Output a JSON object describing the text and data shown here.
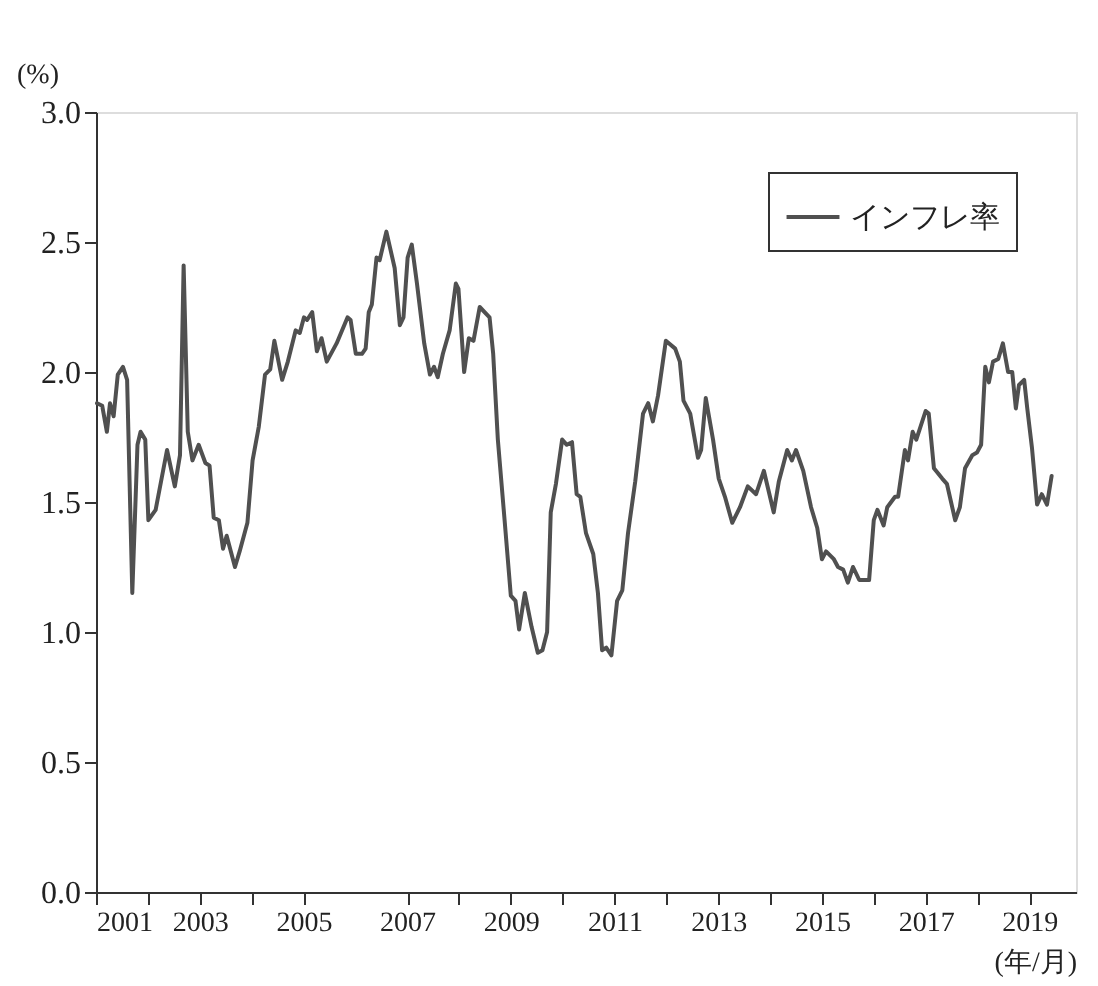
{
  "chart_data": {
    "type": "line",
    "xlabel": "(年/月)",
    "ylabel": "(%)",
    "xlim": [
      2001,
      2019.9
    ],
    "xticks": [
      {
        "value": 2001,
        "label": "2001"
      },
      {
        "value": 2002,
        "label": null
      },
      {
        "value": 2003,
        "label": "2003"
      },
      {
        "value": 2004,
        "label": null
      },
      {
        "value": 2005,
        "label": "2005"
      },
      {
        "value": 2007,
        "label": "2007"
      },
      {
        "value": 2008,
        "label": null
      },
      {
        "value": 2009,
        "label": "2009"
      },
      {
        "value": 2010,
        "label": null
      },
      {
        "value": 2011,
        "label": "2011"
      },
      {
        "value": 2012,
        "label": null
      },
      {
        "value": 2013,
        "label": "2013"
      },
      {
        "value": 2014,
        "label": null
      },
      {
        "value": 2015,
        "label": "2015"
      },
      {
        "value": 2016,
        "label": null
      },
      {
        "value": 2017,
        "label": "2017"
      },
      {
        "value": 2018,
        "label": null
      },
      {
        "value": 2019,
        "label": "2019"
      }
    ],
    "ylim": [
      0,
      3
    ],
    "yticks": [
      {
        "value": 0,
        "label": "0.0"
      },
      {
        "value": 0.5,
        "label": "0.5"
      },
      {
        "value": 1,
        "label": "1.0"
      },
      {
        "value": 1.5,
        "label": "1.5"
      },
      {
        "value": 2,
        "label": "2.0"
      },
      {
        "value": 2.5,
        "label": "2.5"
      },
      {
        "value": 3,
        "label": "3.0"
      }
    ],
    "grid": false,
    "legend": "top right",
    "marker": "none",
    "line_style": "solid",
    "series": [
      {
        "name": "インフレ率",
        "color": "#505050",
        "x": [
          2001.02,
          2001.12,
          2001.21,
          2001.27,
          2001.34,
          2001.42,
          2001.52,
          2001.6,
          2001.7,
          2001.8,
          2001.86,
          2001.95,
          2002.01,
          2002.15,
          2002.37,
          2002.52,
          2002.62,
          2002.69,
          2002.77,
          2002.86,
          2002.98,
          2003.11,
          2003.19,
          2003.27,
          2003.37,
          2003.45,
          2003.52,
          2003.68,
          2003.77,
          2003.92,
          2004.02,
          2004.14,
          2004.26,
          2004.36,
          2004.44,
          2004.59,
          2004.7,
          2004.85,
          2004.93,
          2005.01,
          2005.07,
          2005.17,
          2005.26,
          2005.35,
          2005.45,
          2005.64,
          2005.85,
          2005.91,
          2006.01,
          2006.13,
          2006.2,
          2006.26,
          2006.32,
          2006.41,
          2006.47,
          2006.6,
          2006.76,
          2006.86,
          2006.93,
          2007.01,
          2007.09,
          2007.19,
          2007.33,
          2007.44,
          2007.52,
          2007.59,
          2007.69,
          2007.82,
          2007.94,
          2007.99,
          2008.1,
          2008.19,
          2008.28,
          2008.4,
          2008.59,
          2008.66,
          2008.75,
          2008.88,
          2009.0,
          2009.09,
          2009.16,
          2009.27,
          2009.4,
          2009.52,
          2009.61,
          2009.7,
          2009.77,
          2009.87,
          2009.99,
          2010.08,
          2010.18,
          2010.27,
          2010.34,
          2010.45,
          2010.59,
          2010.68,
          2010.76,
          2010.84,
          2010.94,
          2011.05,
          2011.15,
          2011.26,
          2011.4,
          2011.55,
          2011.65,
          2011.74,
          2011.84,
          2011.99,
          2012.17,
          2012.26,
          2012.33,
          2012.46,
          2012.61,
          2012.67,
          2012.76,
          2012.9,
          2013.01,
          2013.13,
          2013.27,
          2013.42,
          2013.57,
          2013.73,
          2013.88,
          2014.07,
          2014.17,
          2014.33,
          2014.42,
          2014.5,
          2014.64,
          2014.79,
          2014.91,
          2015.0,
          2015.08,
          2015.23,
          2015.31,
          2015.41,
          2015.5,
          2015.6,
          2015.72,
          2015.91,
          2016.0,
          2016.07,
          2016.19,
          2016.26,
          2016.41,
          2016.47,
          2016.6,
          2016.66,
          2016.75,
          2016.82,
          2017.0,
          2017.06,
          2017.16,
          2017.32,
          2017.41,
          2017.57,
          2017.66,
          2017.76,
          2017.9,
          2017.99,
          2018.07,
          2018.15,
          2018.22,
          2018.3,
          2018.4,
          2018.49,
          2018.59,
          2018.67,
          2018.74,
          2018.8,
          2018.9,
          2018.96,
          2019.05,
          2019.15,
          2019.24,
          2019.34,
          2019.43
        ],
        "values": [
          1.88,
          1.87,
          1.77,
          1.88,
          1.83,
          1.99,
          2.02,
          1.97,
          1.15,
          1.72,
          1.77,
          1.74,
          1.43,
          1.47,
          1.7,
          1.56,
          1.68,
          2.41,
          1.77,
          1.66,
          1.72,
          1.65,
          1.64,
          1.44,
          1.43,
          1.32,
          1.37,
          1.25,
          1.31,
          1.42,
          1.66,
          1.79,
          1.99,
          2.01,
          2.12,
          1.97,
          2.04,
          2.16,
          2.15,
          2.21,
          2.2,
          2.23,
          2.08,
          2.13,
          2.04,
          2.11,
          2.21,
          2.2,
          2.07,
          2.07,
          2.09,
          2.23,
          2.26,
          2.44,
          2.43,
          2.54,
          2.4,
          2.18,
          2.21,
          2.44,
          2.49,
          2.34,
          2.11,
          1.99,
          2.02,
          1.98,
          2.07,
          2.16,
          2.34,
          2.32,
          2.0,
          2.13,
          2.12,
          2.25,
          2.21,
          2.07,
          1.74,
          1.43,
          1.14,
          1.12,
          1.01,
          1.15,
          1.02,
          0.92,
          0.93,
          1.0,
          1.46,
          1.57,
          1.74,
          1.72,
          1.73,
          1.53,
          1.52,
          1.38,
          1.3,
          1.15,
          0.93,
          0.94,
          0.91,
          1.12,
          1.16,
          1.38,
          1.58,
          1.84,
          1.88,
          1.81,
          1.91,
          2.12,
          2.09,
          2.04,
          1.89,
          1.84,
          1.67,
          1.7,
          1.9,
          1.74,
          1.59,
          1.52,
          1.42,
          1.48,
          1.56,
          1.53,
          1.62,
          1.46,
          1.58,
          1.7,
          1.66,
          1.7,
          1.62,
          1.48,
          1.4,
          1.28,
          1.31,
          1.28,
          1.25,
          1.24,
          1.19,
          1.25,
          1.2,
          1.2,
          1.43,
          1.47,
          1.41,
          1.48,
          1.52,
          1.52,
          1.7,
          1.66,
          1.77,
          1.74,
          1.85,
          1.84,
          1.63,
          1.59,
          1.57,
          1.43,
          1.48,
          1.63,
          1.68,
          1.69,
          1.72,
          2.02,
          1.96,
          2.04,
          2.05,
          2.11,
          2.0,
          2.0,
          1.86,
          1.95,
          1.97,
          1.86,
          1.71,
          1.49,
          1.53,
          1.49,
          1.6
        ]
      }
    ]
  }
}
